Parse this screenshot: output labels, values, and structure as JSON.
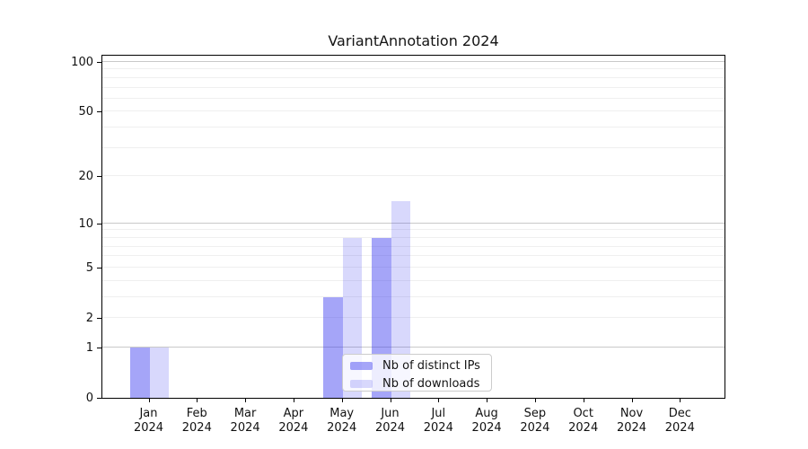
{
  "chart_data": {
    "type": "bar",
    "title": "VariantAnnotation 2024",
    "categories": [
      "Jan",
      "Feb",
      "Mar",
      "Apr",
      "May",
      "Jun",
      "Jul",
      "Aug",
      "Sep",
      "Oct",
      "Nov",
      "Dec"
    ],
    "x_year": "2024",
    "series": [
      {
        "name": "Nb of distinct IPs",
        "color": "rgba(50,50,240,0.44)",
        "color_hex": "#a5a5f8",
        "values": [
          1,
          0,
          0,
          0,
          3,
          8,
          0,
          0,
          0,
          0,
          0,
          0
        ]
      },
      {
        "name": "Nb of downloads",
        "color": "rgba(50,50,240,0.19)",
        "color_hex": "#d8d8fc",
        "values": [
          1,
          0,
          0,
          0,
          8,
          14,
          0,
          0,
          0,
          0,
          0,
          0
        ]
      }
    ],
    "y_ticks": [
      0,
      1,
      2,
      5,
      10,
      20,
      50,
      100
    ],
    "major_gridlines": [
      1,
      10,
      100
    ],
    "minor_gridlines": [
      2,
      3,
      4,
      5,
      6,
      7,
      8,
      9,
      20,
      30,
      40,
      50,
      60,
      70,
      80,
      90
    ],
    "y_scale": "log10(1+value)",
    "ylim": [
      0,
      112
    ],
    "xlabel": "",
    "ylabel": "",
    "grid": true,
    "legend_position": "bottom-center",
    "colors": {
      "spine": "#000000",
      "major_grid": "#c9c9c9",
      "minor_grid": "#efefef",
      "background": "#ffffff"
    }
  }
}
